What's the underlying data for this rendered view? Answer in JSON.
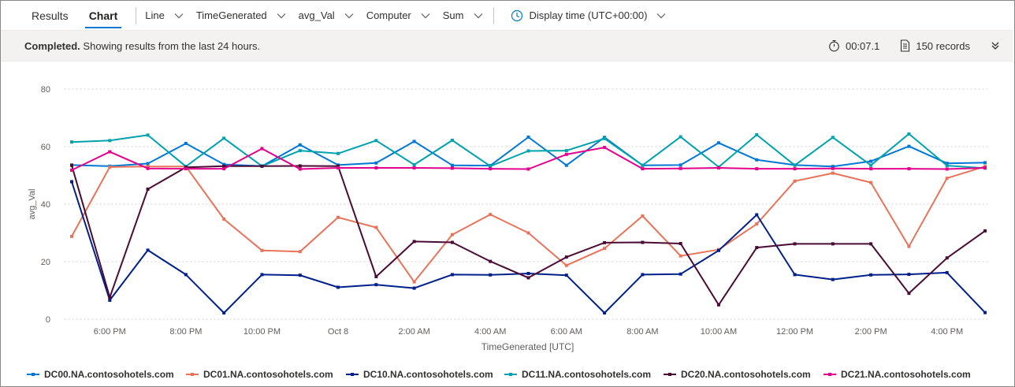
{
  "tabs": [
    {
      "label": "Results",
      "active": false
    },
    {
      "label": "Chart",
      "active": true
    }
  ],
  "toolbar": {
    "chart_type": "Line",
    "x_column": "TimeGenerated",
    "y_column": "avg_Val",
    "split_column": "Computer",
    "aggregation": "Sum",
    "display_time": "Display time (UTC+00:00)"
  },
  "status": {
    "completed": "Completed.",
    "message": "Showing results from the last 24 hours.",
    "duration": "00:07.1",
    "records": "150 records"
  },
  "colors": {
    "accent": "#0078d4"
  },
  "icons": [
    "chevron-down-icon",
    "clock-icon",
    "stopwatch-icon",
    "document-icon",
    "double-chevron-down-icon"
  ],
  "chart_data": {
    "type": "line",
    "xlabel": "TimeGenerated [UTC]",
    "ylabel": "avg_Val",
    "ylim": [
      0,
      80
    ],
    "yticks": [
      0,
      20,
      40,
      60,
      80
    ],
    "x_tick_labels": [
      "6:00 PM",
      "8:00 PM",
      "10:00 PM",
      "Oct 8",
      "2:00 AM",
      "4:00 AM",
      "6:00 AM",
      "8:00 AM",
      "10:00 AM",
      "12:00 PM",
      "2:00 PM",
      "4:00 PM"
    ],
    "x_tick_hours": [
      18,
      20,
      22,
      24,
      26,
      28,
      30,
      32,
      34,
      36,
      38,
      40
    ],
    "x_hours": [
      17,
      18,
      19,
      20,
      21,
      22,
      23,
      24,
      25,
      26,
      27,
      28,
      29,
      30,
      31,
      32,
      33,
      34,
      35,
      36,
      37,
      38,
      39,
      40,
      41
    ],
    "xlim_hours": [
      17,
      41
    ],
    "grid": true,
    "legend_position": "bottom",
    "series": [
      {
        "name": "DC00.NA.contosohotels.com",
        "color": "#0078d4",
        "values": [
          53.6,
          53.2,
          54.1,
          61.1,
          53.8,
          53.2,
          60.6,
          53.6,
          54.3,
          61.8,
          53.5,
          53.4,
          63.3,
          53.5,
          63.2,
          53.5,
          53.6,
          61.3,
          55.4,
          53.6,
          53.1,
          54.9,
          60.1,
          54.2,
          54.4
        ]
      },
      {
        "name": "DC01.NA.contosohotels.com",
        "color": "#e8735a",
        "values": [
          28.8,
          52.9,
          53.1,
          53.1,
          34.8,
          23.9,
          23.5,
          35.4,
          31.9,
          13.0,
          29.4,
          36.4,
          30.0,
          18.7,
          24.6,
          35.9,
          22.0,
          24.2,
          33.1,
          48.0,
          50.8,
          47.5,
          25.3,
          49.0,
          53.1
        ]
      },
      {
        "name": "DC10.NA.contosohotels.com",
        "color": "#001f8a",
        "values": [
          47.8,
          6.6,
          24.0,
          15.5,
          2.2,
          15.5,
          15.3,
          11.1,
          12.0,
          10.8,
          15.5,
          15.4,
          15.9,
          15.3,
          2.2,
          15.5,
          15.7,
          23.9,
          36.3,
          15.5,
          13.8,
          15.4,
          15.6,
          16.2,
          2.3
        ]
      },
      {
        "name": "DC11.NA.contosohotels.com",
        "color": "#00a2ad",
        "values": [
          61.6,
          62.1,
          64.0,
          53.1,
          62.9,
          53.2,
          58.6,
          57.6,
          62.1,
          53.7,
          62.2,
          53.2,
          58.5,
          58.6,
          62.8,
          53.5,
          63.4,
          52.9,
          64.1,
          53.5,
          63.2,
          53.5,
          64.4,
          53.4,
          52.5
        ]
      },
      {
        "name": "DC20.NA.contosohotels.com",
        "color": "#4a0b34",
        "values": [
          53.5,
          7.6,
          45.2,
          52.8,
          53.2,
          53.2,
          53.3,
          53.2,
          14.8,
          27.0,
          26.7,
          20.1,
          14.4,
          21.6,
          26.6,
          26.7,
          26.3,
          5.0,
          24.9,
          26.2,
          26.2,
          26.2,
          9.0,
          21.3,
          30.7
        ]
      },
      {
        "name": "DC21.NA.contosohotels.com",
        "color": "#e3008c",
        "values": [
          51.8,
          58.2,
          52.4,
          52.3,
          52.3,
          59.3,
          52.2,
          52.6,
          52.6,
          52.6,
          52.5,
          52.3,
          52.2,
          57.3,
          59.7,
          52.3,
          52.4,
          52.6,
          52.3,
          52.3,
          52.4,
          52.3,
          52.3,
          52.2,
          52.6
        ]
      }
    ]
  }
}
